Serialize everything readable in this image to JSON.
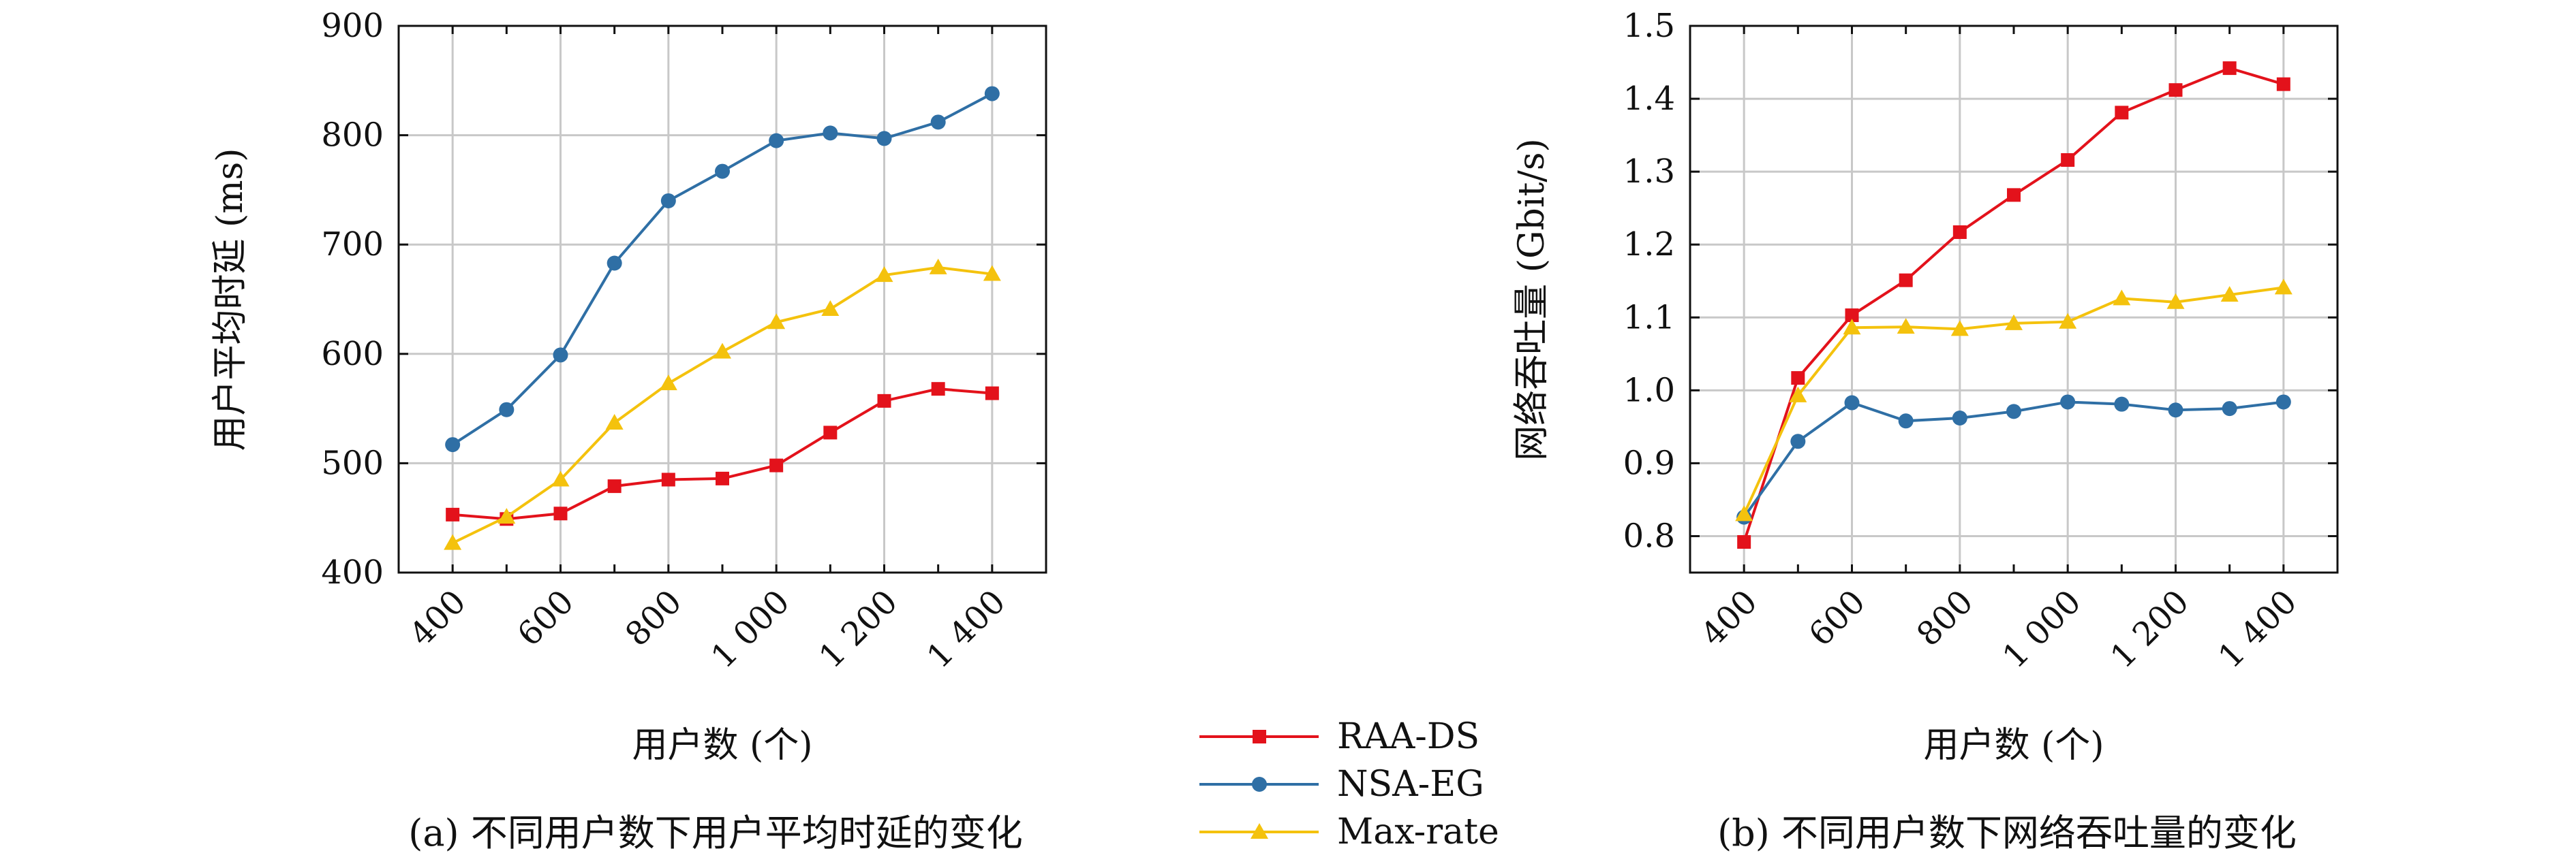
{
  "colors": {
    "RAA-DS": "#e3121b",
    "NSA-EG": "#2f6fa5",
    "Max-rate": "#f4c20d",
    "grid": "#c8c8c8",
    "axis": "#111111"
  },
  "legend": {
    "items": [
      "RAA-DS",
      "NSA-EG",
      "Max-rate"
    ],
    "placement": "bottom-center"
  },
  "chart_data": [
    {
      "type": "line",
      "title": "",
      "caption": "(a) 不同用户数下用户平均时延的变化",
      "xlabel": "用户数 (个)",
      "ylabel": "用户平均时延 (ms)",
      "x": [
        400,
        500,
        600,
        700,
        800,
        900,
        1000,
        1100,
        1200,
        1300,
        1400
      ],
      "xlim": [
        300,
        1500
      ],
      "ylim": [
        400,
        900
      ],
      "xticks": [
        400,
        600,
        800,
        1000,
        1200,
        1400
      ],
      "xtick_labels": [
        "400",
        "600",
        "800",
        "1 000",
        "1 200",
        "1 400"
      ],
      "yticks": [
        400,
        500,
        600,
        700,
        800,
        900
      ],
      "ytick_labels": [
        "400",
        "500",
        "600",
        "700",
        "800",
        "900"
      ],
      "grid": true,
      "series": [
        {
          "name": "RAA-DS",
          "marker": "square",
          "values": [
            453,
            449,
            454,
            479,
            485,
            486,
            498,
            528,
            557,
            568,
            564
          ]
        },
        {
          "name": "NSA-EG",
          "marker": "circle",
          "values": [
            517,
            549,
            599,
            683,
            740,
            767,
            795,
            802,
            797,
            812,
            838
          ]
        },
        {
          "name": "Max-rate",
          "marker": "triangle",
          "values": [
            427,
            451,
            485,
            537,
            573,
            602,
            629,
            641,
            672,
            679,
            673
          ]
        }
      ]
    },
    {
      "type": "line",
      "title": "",
      "caption": "(b) 不同用户数下网络吞吐量的变化",
      "xlabel": "用户数 (个)",
      "ylabel": "网络吞吐量 (Gbit/s)",
      "x": [
        400,
        500,
        600,
        700,
        800,
        900,
        1000,
        1100,
        1200,
        1300,
        1400
      ],
      "xlim": [
        300,
        1500
      ],
      "ylim": [
        0.75,
        1.5
      ],
      "xticks": [
        400,
        600,
        800,
        1000,
        1200,
        1400
      ],
      "xtick_labels": [
        "400",
        "600",
        "800",
        "1 000",
        "1 200",
        "1 400"
      ],
      "yticks": [
        0.8,
        0.9,
        1.0,
        1.1,
        1.2,
        1.3,
        1.4,
        1.5
      ],
      "ytick_labels": [
        "0.8",
        "0.9",
        "1.0",
        "1.1",
        "1.2",
        "1.3",
        "1.4",
        "1.5"
      ],
      "grid": true,
      "series": [
        {
          "name": "RAA-DS",
          "marker": "square",
          "values": [
            0.792,
            1.017,
            1.103,
            1.151,
            1.217,
            1.268,
            1.316,
            1.381,
            1.412,
            1.442,
            1.42
          ]
        },
        {
          "name": "NSA-EG",
          "marker": "circle",
          "values": [
            0.826,
            0.93,
            0.983,
            0.958,
            0.962,
            0.971,
            0.984,
            0.981,
            0.973,
            0.975,
            0.984
          ]
        },
        {
          "name": "Max-rate",
          "marker": "triangle",
          "values": [
            0.83,
            0.993,
            1.086,
            1.087,
            1.084,
            1.092,
            1.094,
            1.126,
            1.121,
            1.131,
            1.141
          ]
        }
      ]
    }
  ]
}
